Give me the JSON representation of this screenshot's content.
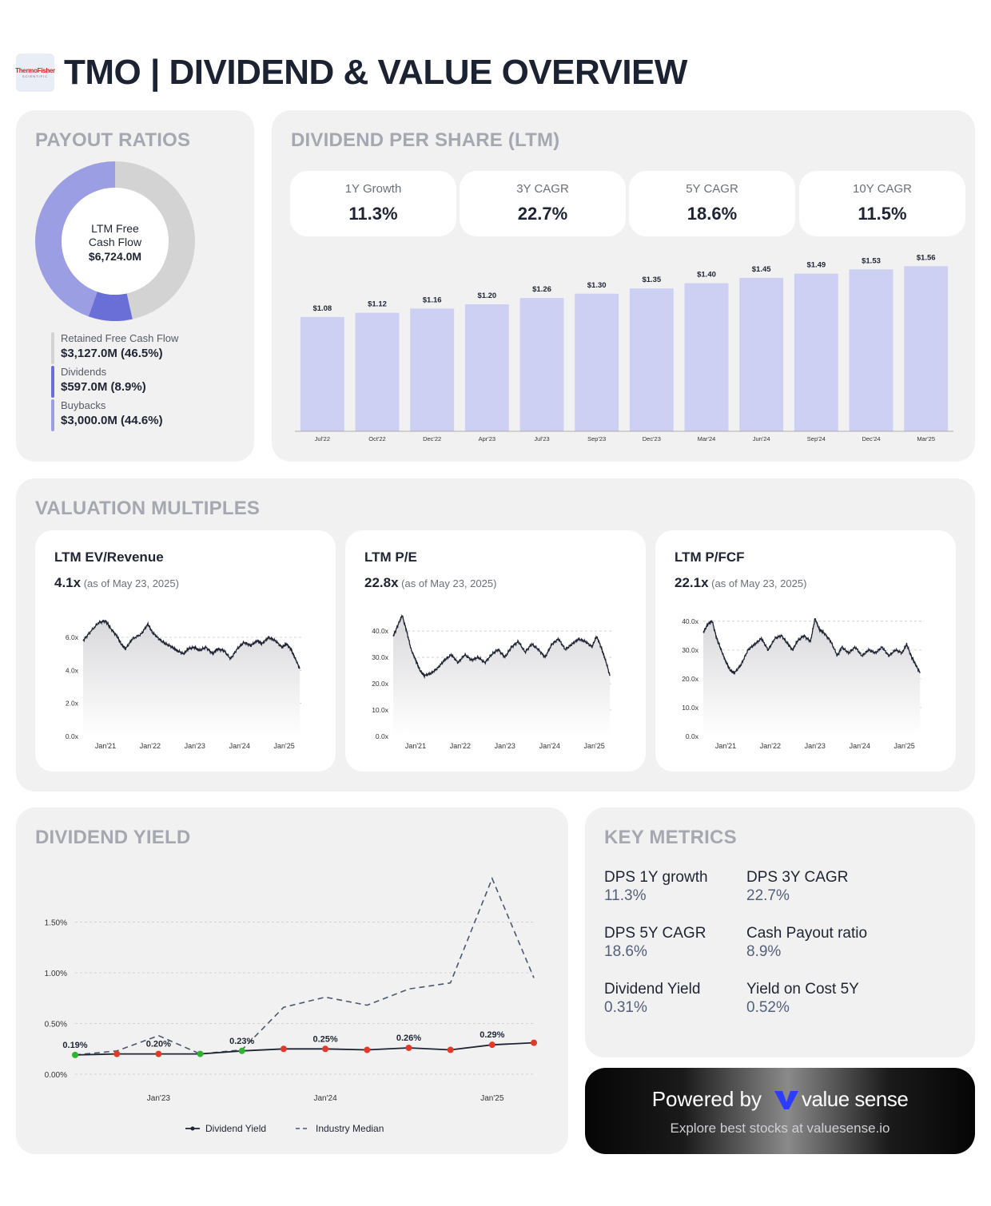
{
  "header": {
    "logo_line1": "ThermoFisher",
    "logo_line2": "SCIENTIFIC",
    "title": "TMO | DIVIDEND & VALUE OVERVIEW"
  },
  "colors": {
    "retained": "#d3d3d3",
    "dividends": "#6a6fd8",
    "buybacks": "#9b9ee3",
    "bar": "#cdd0f3",
    "line": "#1e2433",
    "green": "#2db52d",
    "red": "#e23a2a"
  },
  "payout": {
    "title": "PAYOUT RATIOS",
    "center_line1": "LTM Free",
    "center_line2": "Cash Flow",
    "center_value": "$6,724.0M",
    "items": [
      {
        "label": "Retained Free Cash Flow",
        "value": "$3,127.0M (46.5%)",
        "pct": 46.5,
        "color": "#d3d3d3"
      },
      {
        "label": "Dividends",
        "value": "$597.0M (8.9%)",
        "pct": 8.9,
        "color": "#6a6fd8"
      },
      {
        "label": "Buybacks",
        "value": "$3,000.0M (44.6%)",
        "pct": 44.6,
        "color": "#9b9ee3"
      }
    ]
  },
  "dps": {
    "title": "DIVIDEND PER SHARE (LTM)",
    "stats": [
      {
        "label": "1Y Growth",
        "value": "11.3%"
      },
      {
        "label": "3Y CAGR",
        "value": "22.7%"
      },
      {
        "label": "5Y CAGR",
        "value": "18.6%"
      },
      {
        "label": "10Y CAGR",
        "value": "11.5%"
      }
    ]
  },
  "valuation": {
    "title": "VALUATION MULTIPLES",
    "as_of": "(as of May 23, 2025)",
    "cards": [
      {
        "title": "LTM EV/Revenue",
        "value": "4.1x"
      },
      {
        "title": "LTM P/E",
        "value": "22.8x"
      },
      {
        "title": "LTM P/FCF",
        "value": "22.1x"
      }
    ]
  },
  "yield_title": "DIVIDEND YIELD",
  "key_metrics": {
    "title": "KEY METRICS",
    "items": [
      {
        "label": "DPS 1Y growth",
        "value": "11.3%"
      },
      {
        "label": "DPS 3Y CAGR",
        "value": "22.7%"
      },
      {
        "label": "DPS 5Y CAGR",
        "value": "18.6%"
      },
      {
        "label": "Cash Payout ratio",
        "value": "8.9%"
      },
      {
        "label": "Dividend Yield",
        "value": "0.31%"
      },
      {
        "label": "Yield on Cost 5Y",
        "value": "0.52%"
      }
    ]
  },
  "powered": {
    "prefix": "Powered by",
    "brand": "value sense",
    "tagline": "Explore best stocks at valuesense.io"
  },
  "chart_data": [
    {
      "type": "pie",
      "labels": [
        "Retained Free Cash Flow",
        "Dividends",
        "Buybacks"
      ],
      "values": [
        46.5,
        8.9,
        44.6
      ],
      "title": "PAYOUT RATIOS"
    },
    {
      "type": "bar",
      "title": "DIVIDEND PER SHARE (LTM)",
      "categories": [
        "Jul'22",
        "Oct'22",
        "Dec'22",
        "Apr'23",
        "Jul'23",
        "Sep'23",
        "Dec'23",
        "Mar'24",
        "Jun'24",
        "Sep'24",
        "Dec'24",
        "Mar'25"
      ],
      "values": [
        1.08,
        1.12,
        1.16,
        1.2,
        1.26,
        1.3,
        1.35,
        1.4,
        1.45,
        1.49,
        1.53,
        1.56
      ],
      "labels": [
        "$1.08",
        "$1.12",
        "$1.16",
        "$1.20",
        "$1.26",
        "$1.30",
        "$1.35",
        "$1.40",
        "$1.45",
        "$1.49",
        "$1.53",
        "$1.56"
      ],
      "ylim": [
        0,
        1.6
      ]
    },
    {
      "type": "area",
      "title": "LTM EV/Revenue",
      "ylim": [
        0,
        7.5
      ],
      "yticks": [
        "0.0x",
        "2.0x",
        "4.0x",
        "6.0x"
      ],
      "ytick_values": [
        0,
        2,
        4,
        6
      ],
      "xticks": [
        "Jan'21",
        "Jan'22",
        "Jan'23",
        "Jan'24",
        "Jan'25"
      ],
      "x_range": [
        2020.5,
        2025.4
      ],
      "points": [
        [
          2020.5,
          5.8
        ],
        [
          2020.65,
          6.3
        ],
        [
          2020.85,
          6.9
        ],
        [
          2021.0,
          7.0
        ],
        [
          2021.1,
          6.6
        ],
        [
          2021.25,
          6.1
        ],
        [
          2021.35,
          5.6
        ],
        [
          2021.45,
          5.3
        ],
        [
          2021.6,
          5.9
        ],
        [
          2021.8,
          6.2
        ],
        [
          2021.95,
          6.8
        ],
        [
          2022.05,
          6.3
        ],
        [
          2022.2,
          5.9
        ],
        [
          2022.35,
          5.6
        ],
        [
          2022.5,
          5.4
        ],
        [
          2022.6,
          5.2
        ],
        [
          2022.75,
          5.0
        ],
        [
          2022.85,
          5.3
        ],
        [
          2023.0,
          5.4
        ],
        [
          2023.1,
          5.2
        ],
        [
          2023.25,
          5.4
        ],
        [
          2023.4,
          5.0
        ],
        [
          2023.5,
          5.3
        ],
        [
          2023.65,
          5.2
        ],
        [
          2023.8,
          4.7
        ],
        [
          2023.95,
          5.3
        ],
        [
          2024.1,
          5.7
        ],
        [
          2024.25,
          5.5
        ],
        [
          2024.4,
          5.8
        ],
        [
          2024.5,
          5.6
        ],
        [
          2024.65,
          6.0
        ],
        [
          2024.8,
          5.8
        ],
        [
          2024.95,
          5.4
        ],
        [
          2025.05,
          5.6
        ],
        [
          2025.15,
          5.3
        ],
        [
          2025.25,
          4.7
        ],
        [
          2025.35,
          4.1
        ]
      ]
    },
    {
      "type": "area",
      "title": "LTM P/E",
      "ylim": [
        0,
        47
      ],
      "yticks": [
        "0.0x",
        "10.0x",
        "20.0x",
        "30.0x",
        "40.0x"
      ],
      "ytick_values": [
        0,
        10,
        20,
        30,
        40
      ],
      "xticks": [
        "Jan'21",
        "Jan'22",
        "Jan'23",
        "Jan'24",
        "Jan'25"
      ],
      "x_range": [
        2020.5,
        2025.4
      ],
      "points": [
        [
          2020.5,
          38
        ],
        [
          2020.6,
          42
        ],
        [
          2020.7,
          46
        ],
        [
          2020.8,
          40
        ],
        [
          2020.9,
          33
        ],
        [
          2021.0,
          29
        ],
        [
          2021.1,
          25
        ],
        [
          2021.2,
          23
        ],
        [
          2021.35,
          24
        ],
        [
          2021.5,
          26
        ],
        [
          2021.65,
          29
        ],
        [
          2021.8,
          31
        ],
        [
          2021.95,
          28
        ],
        [
          2022.1,
          31
        ],
        [
          2022.25,
          29
        ],
        [
          2022.4,
          30
        ],
        [
          2022.55,
          28
        ],
        [
          2022.7,
          31
        ],
        [
          2022.85,
          33
        ],
        [
          2023.0,
          30
        ],
        [
          2023.15,
          34
        ],
        [
          2023.3,
          36
        ],
        [
          2023.45,
          32
        ],
        [
          2023.6,
          35
        ],
        [
          2023.75,
          33
        ],
        [
          2023.9,
          30
        ],
        [
          2024.05,
          35
        ],
        [
          2024.2,
          37
        ],
        [
          2024.35,
          33
        ],
        [
          2024.5,
          35
        ],
        [
          2024.65,
          37
        ],
        [
          2024.8,
          36
        ],
        [
          2024.95,
          34
        ],
        [
          2025.05,
          38
        ],
        [
          2025.15,
          34
        ],
        [
          2025.25,
          29
        ],
        [
          2025.35,
          23
        ]
      ]
    },
    {
      "type": "area",
      "title": "LTM P/FCF",
      "ylim": [
        0,
        43
      ],
      "yticks": [
        "0.0x",
        "10.0x",
        "20.0x",
        "30.0x",
        "40.0x"
      ],
      "ytick_values": [
        0,
        10,
        20,
        30,
        40
      ],
      "xticks": [
        "Jan'21",
        "Jan'22",
        "Jan'23",
        "Jan'24",
        "Jan'25"
      ],
      "x_range": [
        2020.5,
        2025.4
      ],
      "points": [
        [
          2020.5,
          36
        ],
        [
          2020.6,
          39
        ],
        [
          2020.7,
          40
        ],
        [
          2020.8,
          34
        ],
        [
          2020.9,
          30
        ],
        [
          2021.0,
          26
        ],
        [
          2021.1,
          23
        ],
        [
          2021.2,
          22
        ],
        [
          2021.35,
          25
        ],
        [
          2021.5,
          30
        ],
        [
          2021.65,
          32
        ],
        [
          2021.8,
          34
        ],
        [
          2021.95,
          30
        ],
        [
          2022.1,
          34
        ],
        [
          2022.25,
          35
        ],
        [
          2022.4,
          32
        ],
        [
          2022.5,
          30
        ],
        [
          2022.6,
          33
        ],
        [
          2022.75,
          35
        ],
        [
          2022.9,
          33
        ],
        [
          2023.0,
          41
        ],
        [
          2023.1,
          37
        ],
        [
          2023.2,
          36
        ],
        [
          2023.35,
          33
        ],
        [
          2023.5,
          28
        ],
        [
          2023.6,
          31
        ],
        [
          2023.75,
          29
        ],
        [
          2023.9,
          31
        ],
        [
          2024.05,
          28
        ],
        [
          2024.2,
          30
        ],
        [
          2024.35,
          29
        ],
        [
          2024.5,
          31
        ],
        [
          2024.65,
          28
        ],
        [
          2024.8,
          30
        ],
        [
          2024.95,
          29
        ],
        [
          2025.05,
          32
        ],
        [
          2025.15,
          28
        ],
        [
          2025.25,
          25
        ],
        [
          2025.35,
          22
        ]
      ]
    },
    {
      "type": "line",
      "title": "DIVIDEND YIELD",
      "ylim": [
        0,
        2.0
      ],
      "yticks": [
        "0.00%",
        "0.50%",
        "1.00%",
        "1.50%"
      ],
      "ytick_values": [
        0,
        0.5,
        1.0,
        1.5
      ],
      "xticks": [
        "Jan'23",
        "Jan'24",
        "Jan'25"
      ],
      "xtick_values": [
        2023.0,
        2024.0,
        2025.0
      ],
      "x_range": [
        2022.5,
        2025.25
      ],
      "legend": [
        "Dividend Yield",
        "Industry Median"
      ],
      "series": [
        {
          "name": "Dividend Yield",
          "x": [
            2022.5,
            2022.75,
            2023.0,
            2023.25,
            2023.5,
            2023.75,
            2024.0,
            2024.25,
            2024.5,
            2024.75,
            2025.0,
            2025.25
          ],
          "values": [
            0.19,
            0.2,
            0.2,
            0.2,
            0.23,
            0.25,
            0.25,
            0.24,
            0.26,
            0.24,
            0.29,
            0.31
          ],
          "point_status": [
            "up",
            "down",
            "down",
            "up",
            "up",
            "down",
            "down",
            "down",
            "down",
            "down",
            "down",
            "down"
          ]
        },
        {
          "name": "Industry Median",
          "x": [
            2022.5,
            2022.75,
            2023.0,
            2023.25,
            2023.5,
            2023.75,
            2024.0,
            2024.25,
            2024.5,
            2024.75,
            2025.0,
            2025.25
          ],
          "values": [
            0.19,
            0.23,
            0.38,
            0.2,
            0.24,
            0.66,
            0.76,
            0.68,
            0.84,
            0.9,
            1.93,
            0.95
          ]
        }
      ],
      "data_labels": [
        {
          "x": 2022.5,
          "text": "0.19%"
        },
        {
          "x": 2023.0,
          "text": "0.20%"
        },
        {
          "x": 2023.5,
          "text": "0.23%"
        },
        {
          "x": 2024.0,
          "text": "0.25%"
        },
        {
          "x": 2024.5,
          "text": "0.26%"
        },
        {
          "x": 2025.0,
          "text": "0.29%"
        }
      ]
    }
  ]
}
